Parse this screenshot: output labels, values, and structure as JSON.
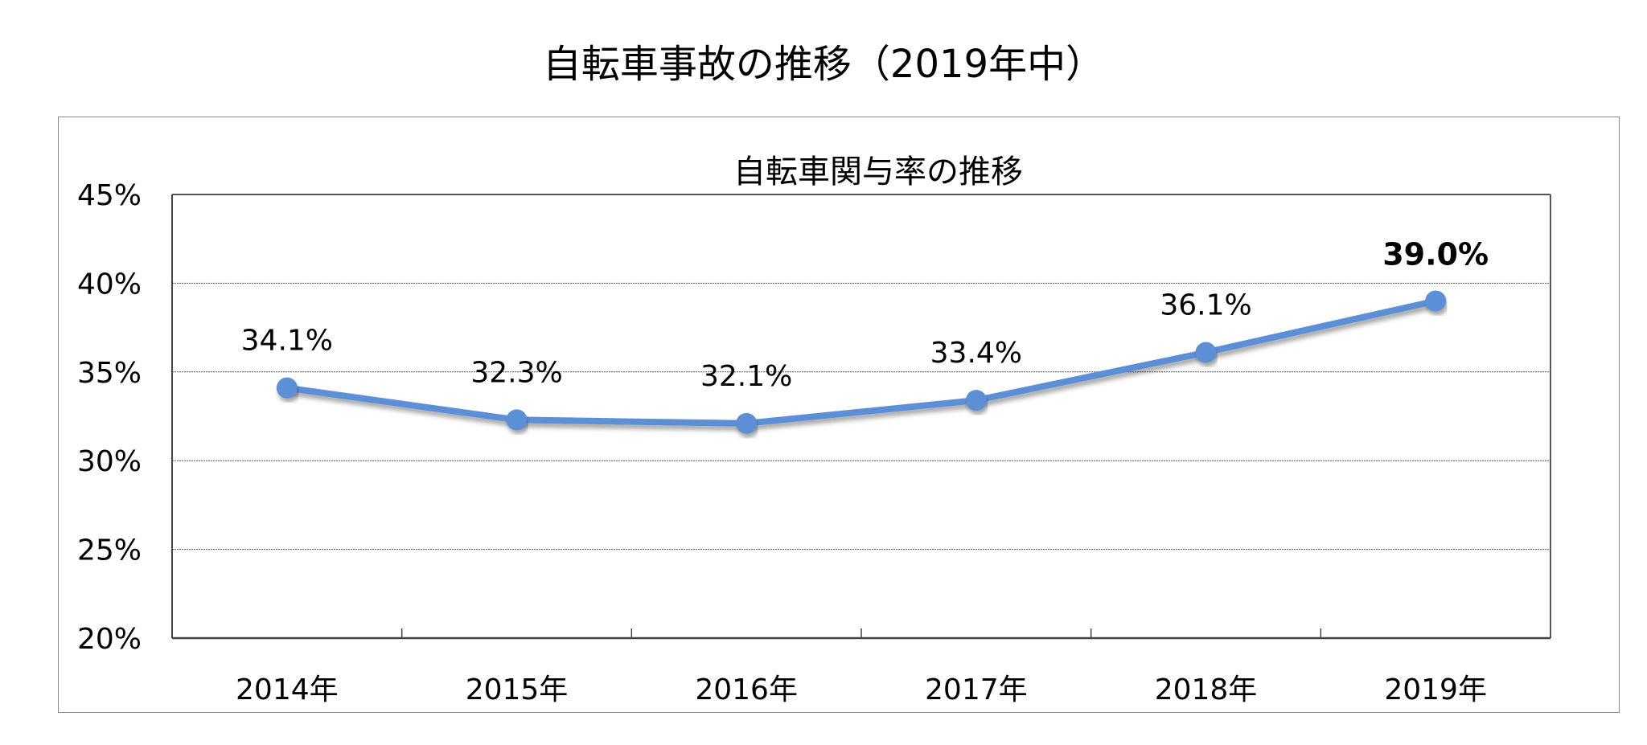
{
  "page": {
    "title": "自転車事故の推移（2019年中）"
  },
  "chart_data": {
    "type": "line",
    "title": "自転車関与率の推移",
    "xlabel": "",
    "ylabel": "",
    "categories": [
      "2014年",
      "2015年",
      "2016年",
      "2017年",
      "2018年",
      "2019年"
    ],
    "series": [
      {
        "values": [
          34.1,
          32.3,
          32.1,
          33.4,
          36.1,
          39.0
        ],
        "data_labels": [
          "34.1%",
          "32.3%",
          "32.1%",
          "33.4%",
          "36.1%",
          "39.0%"
        ],
        "emphasized_label_index": 5,
        "color": "#5B8FD6"
      }
    ],
    "ylim": [
      20,
      45
    ],
    "yticks": [
      20,
      25,
      30,
      35,
      40,
      45
    ],
    "ytick_labels": [
      "20%",
      "25%",
      "30%",
      "35%",
      "40%",
      "45%"
    ],
    "grid": true,
    "legend": "none"
  }
}
